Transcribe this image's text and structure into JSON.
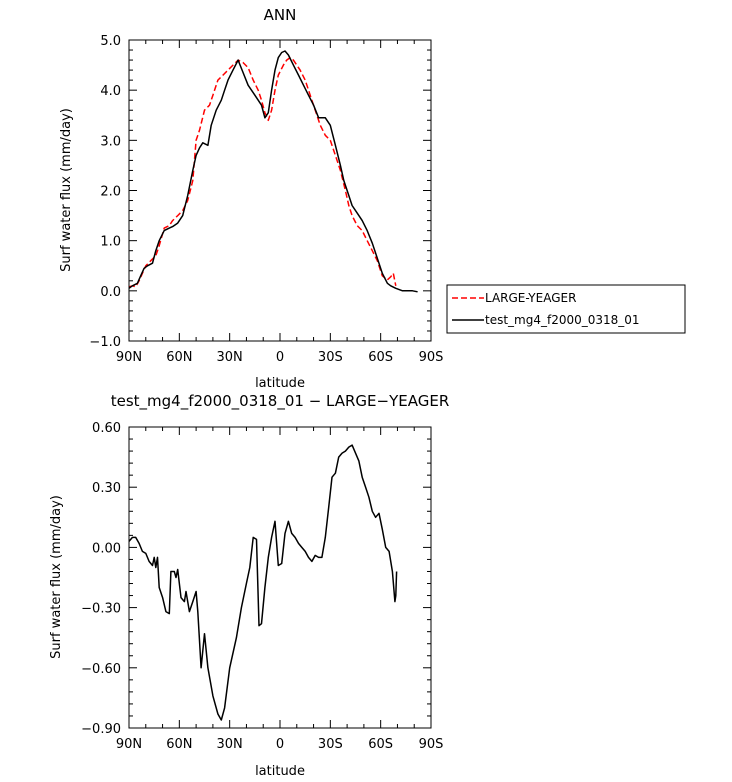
{
  "chart_data": [
    {
      "type": "line",
      "title": "ANN",
      "xlabel": "latitude",
      "ylabel": "Surf water flux (mm/day)",
      "xlim": [
        90,
        -90
      ],
      "ylim": [
        -1.0,
        5.0
      ],
      "xticks": [
        90,
        60,
        30,
        0,
        -30,
        -60,
        -90
      ],
      "xtick_labels": [
        "90N",
        "60N",
        "30N",
        "0",
        "30S",
        "60S",
        "90S"
      ],
      "yticks": [
        -1.0,
        0.0,
        1.0,
        2.0,
        3.0,
        4.0,
        5.0
      ],
      "ytick_labels": [
        "−1.0",
        "0.0",
        "1.0",
        "2.0",
        "3.0",
        "4.0",
        "5.0"
      ],
      "grid": false,
      "legend_position": "right",
      "series": [
        {
          "name": "LARGE-YEAGER",
          "color": "#ff0000",
          "dash": "dashed",
          "points": [
            [
              90,
              0.08
            ],
            [
              88,
              0.1
            ],
            [
              86,
              0.08
            ],
            [
              84,
              0.2
            ],
            [
              82,
              0.35
            ],
            [
              80,
              0.5
            ],
            [
              77,
              0.6
            ],
            [
              74,
              0.7
            ],
            [
              72,
              0.9
            ],
            [
              69,
              1.25
            ],
            [
              66,
              1.3
            ],
            [
              64,
              1.4
            ],
            [
              61,
              1.5
            ],
            [
              58,
              1.6
            ],
            [
              55,
              1.8
            ],
            [
              52,
              2.2
            ],
            [
              50,
              3.0
            ],
            [
              48,
              3.2
            ],
            [
              45,
              3.6
            ],
            [
              42,
              3.7
            ],
            [
              40,
              3.9
            ],
            [
              37,
              4.2
            ],
            [
              34,
              4.3
            ],
            [
              31,
              4.4
            ],
            [
              28,
              4.5
            ],
            [
              25,
              4.6
            ],
            [
              22,
              4.55
            ],
            [
              19,
              4.45
            ],
            [
              16,
              4.2
            ],
            [
              13,
              4.0
            ],
            [
              11,
              3.8
            ],
            [
              9,
              3.55
            ],
            [
              7,
              3.4
            ],
            [
              5,
              3.6
            ],
            [
              3,
              4.0
            ],
            [
              1,
              4.3
            ],
            [
              -2,
              4.5
            ],
            [
              -4,
              4.6
            ],
            [
              -6,
              4.65
            ],
            [
              -8,
              4.6
            ],
            [
              -10,
              4.5
            ],
            [
              -12,
              4.4
            ],
            [
              -15,
              4.2
            ],
            [
              -18,
              3.9
            ],
            [
              -21,
              3.6
            ],
            [
              -24,
              3.3
            ],
            [
              -27,
              3.1
            ],
            [
              -30,
              3.0
            ],
            [
              -33,
              2.7
            ],
            [
              -36,
              2.4
            ],
            [
              -39,
              2.0
            ],
            [
              -41,
              1.7
            ],
            [
              -43,
              1.5
            ],
            [
              -46,
              1.3
            ],
            [
              -49,
              1.2
            ],
            [
              -52,
              1.0
            ],
            [
              -55,
              0.8
            ],
            [
              -58,
              0.6
            ],
            [
              -61,
              0.3
            ],
            [
              -64,
              0.22
            ],
            [
              -66,
              0.28
            ],
            [
              -67.5,
              0.35
            ],
            [
              -69,
              0.1
            ]
          ]
        },
        {
          "name": "test_mg4_f2000_0318_01",
          "color": "#000000",
          "dash": "solid",
          "points": [
            [
              90,
              0.05
            ],
            [
              88,
              0.1
            ],
            [
              85,
              0.15
            ],
            [
              83,
              0.3
            ],
            [
              81,
              0.45
            ],
            [
              79,
              0.5
            ],
            [
              76,
              0.55
            ],
            [
              74,
              0.8
            ],
            [
              72,
              1.0
            ],
            [
              69,
              1.2
            ],
            [
              66,
              1.25
            ],
            [
              64,
              1.28
            ],
            [
              61,
              1.35
            ],
            [
              58,
              1.5
            ],
            [
              55,
              1.9
            ],
            [
              52,
              2.4
            ],
            [
              50,
              2.7
            ],
            [
              48,
              2.85
            ],
            [
              46,
              2.95
            ],
            [
              43,
              2.9
            ],
            [
              41,
              3.3
            ],
            [
              38,
              3.6
            ],
            [
              35,
              3.8
            ],
            [
              33,
              4.0
            ],
            [
              31,
              4.2
            ],
            [
              28,
              4.4
            ],
            [
              25,
              4.6
            ],
            [
              22,
              4.35
            ],
            [
              19,
              4.1
            ],
            [
              16,
              3.95
            ],
            [
              13,
              3.8
            ],
            [
              11,
              3.7
            ],
            [
              9,
              3.45
            ],
            [
              7,
              3.55
            ],
            [
              5,
              4.0
            ],
            [
              3,
              4.4
            ],
            [
              1,
              4.65
            ],
            [
              -1,
              4.75
            ],
            [
              -3,
              4.78
            ],
            [
              -5,
              4.7
            ],
            [
              -8,
              4.5
            ],
            [
              -11,
              4.3
            ],
            [
              -14,
              4.1
            ],
            [
              -17,
              3.9
            ],
            [
              -20,
              3.7
            ],
            [
              -23,
              3.45
            ],
            [
              -25,
              3.45
            ],
            [
              -27,
              3.45
            ],
            [
              -30,
              3.3
            ],
            [
              -33,
              2.9
            ],
            [
              -36,
              2.5
            ],
            [
              -38,
              2.2
            ],
            [
              -41,
              1.9
            ],
            [
              -43,
              1.7
            ],
            [
              -46,
              1.55
            ],
            [
              -49,
              1.4
            ],
            [
              -52,
              1.2
            ],
            [
              -55,
              0.95
            ],
            [
              -58,
              0.65
            ],
            [
              -61,
              0.35
            ],
            [
              -64,
              0.15
            ],
            [
              -66,
              0.1
            ],
            [
              -69,
              0.05
            ],
            [
              -73,
              0.0
            ],
            [
              -76,
              0.0
            ],
            [
              -79,
              0.0
            ],
            [
              -82,
              -0.02
            ]
          ]
        }
      ]
    },
    {
      "type": "line",
      "title": "test_mg4_f2000_0318_01 − LARGE−YEAGER",
      "xlabel": "latitude",
      "ylabel": "Surf water flux (mm/day)",
      "xlim": [
        90,
        -90
      ],
      "ylim": [
        -0.9,
        0.6
      ],
      "xticks": [
        90,
        60,
        30,
        0,
        -30,
        -60,
        -90
      ],
      "xtick_labels": [
        "90N",
        "60N",
        "30N",
        "0",
        "30S",
        "60S",
        "90S"
      ],
      "yticks": [
        -0.9,
        -0.6,
        -0.3,
        0.0,
        0.3,
        0.6
      ],
      "ytick_labels": [
        "−0.90",
        "−0.60",
        "−0.30",
        "0.00",
        "0.30",
        "0.60"
      ],
      "grid": false,
      "series": [
        {
          "color": "#000000",
          "dash": "solid",
          "points": [
            [
              90,
              0.03
            ],
            [
              88,
              0.05
            ],
            [
              86,
              0.05
            ],
            [
              84,
              0.02
            ],
            [
              82,
              -0.02
            ],
            [
              80,
              -0.03
            ],
            [
              78,
              -0.07
            ],
            [
              76,
              -0.09
            ],
            [
              75,
              -0.05
            ],
            [
              74,
              -0.1
            ],
            [
              73,
              -0.05
            ],
            [
              72,
              -0.2
            ],
            [
              70,
              -0.25
            ],
            [
              68,
              -0.32
            ],
            [
              66,
              -0.33
            ],
            [
              65,
              -0.12
            ],
            [
              63,
              -0.12
            ],
            [
              62,
              -0.15
            ],
            [
              61,
              -0.11
            ],
            [
              59,
              -0.25
            ],
            [
              57,
              -0.27
            ],
            [
              56,
              -0.22
            ],
            [
              54,
              -0.32
            ],
            [
              52,
              -0.27
            ],
            [
              50,
              -0.22
            ],
            [
              49,
              -0.32
            ],
            [
              47,
              -0.6
            ],
            [
              45,
              -0.43
            ],
            [
              43,
              -0.6
            ],
            [
              40,
              -0.74
            ],
            [
              37,
              -0.83
            ],
            [
              35,
              -0.86
            ],
            [
              33,
              -0.8
            ],
            [
              30,
              -0.6
            ],
            [
              26,
              -0.45
            ],
            [
              23,
              -0.3
            ],
            [
              20,
              -0.18
            ],
            [
              18,
              -0.1
            ],
            [
              16,
              0.05
            ],
            [
              14,
              0.04
            ],
            [
              12.5,
              -0.39
            ],
            [
              11,
              -0.38
            ],
            [
              9,
              -0.2
            ],
            [
              7,
              -0.05
            ],
            [
              5,
              0.05
            ],
            [
              3,
              0.13
            ],
            [
              1,
              -0.09
            ],
            [
              -1,
              -0.08
            ],
            [
              -3,
              0.07
            ],
            [
              -5,
              0.13
            ],
            [
              -7,
              0.07
            ],
            [
              -9,
              0.05
            ],
            [
              -11,
              0.02
            ],
            [
              -13,
              0.0
            ],
            [
              -15,
              -0.02
            ],
            [
              -17,
              -0.05
            ],
            [
              -19,
              -0.07
            ],
            [
              -21,
              -0.04
            ],
            [
              -23,
              -0.05
            ],
            [
              -25,
              -0.05
            ],
            [
              -27,
              0.05
            ],
            [
              -29,
              0.2
            ],
            [
              -31,
              0.35
            ],
            [
              -33,
              0.37
            ],
            [
              -35,
              0.45
            ],
            [
              -37,
              0.47
            ],
            [
              -39,
              0.48
            ],
            [
              -41,
              0.5
            ],
            [
              -43,
              0.51
            ],
            [
              -45,
              0.47
            ],
            [
              -47,
              0.43
            ],
            [
              -49,
              0.35
            ],
            [
              -51,
              0.3
            ],
            [
              -53,
              0.25
            ],
            [
              -55,
              0.18
            ],
            [
              -57,
              0.15
            ],
            [
              -59,
              0.17
            ],
            [
              -61,
              0.09
            ],
            [
              -63,
              0.0
            ],
            [
              -65,
              -0.02
            ],
            [
              -67,
              -0.12
            ],
            [
              -68.5,
              -0.27
            ],
            [
              -69,
              -0.24
            ],
            [
              -69.5,
              -0.12
            ]
          ]
        }
      ]
    }
  ]
}
